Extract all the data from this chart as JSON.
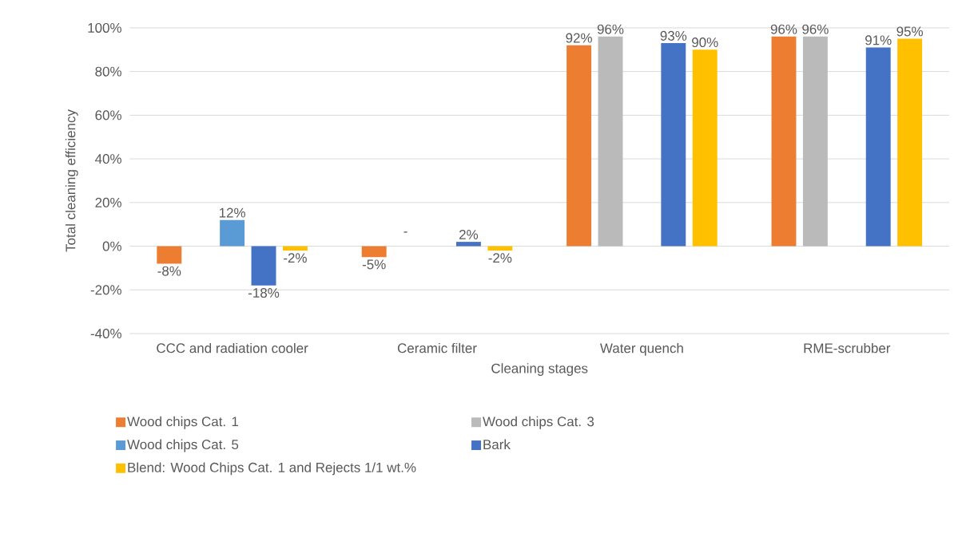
{
  "chart_data": {
    "type": "bar",
    "xlabel": "Cleaning stages",
    "ylabel": "Total cleaning efficiency",
    "categories": [
      "CCC and radiation cooler",
      "Ceramic filter",
      "Water quench",
      "RME-scrubber"
    ],
    "ylim": [
      -40,
      100
    ],
    "yticks": [
      {
        "value": -40,
        "label": "-40%"
      },
      {
        "value": -20,
        "label": "-20%"
      },
      {
        "value": 0,
        "label": "0%"
      },
      {
        "value": 20,
        "label": "20%"
      },
      {
        "value": 40,
        "label": "40%"
      },
      {
        "value": 60,
        "label": "60%"
      },
      {
        "value": 80,
        "label": "80%"
      },
      {
        "value": 100,
        "label": "100%"
      }
    ],
    "grid": "y",
    "legend": "bottom",
    "series": [
      {
        "name": "Wood chips Cat. 1",
        "color": "#ed7d31",
        "values": [
          -8,
          -5,
          92,
          96
        ],
        "value_labels": [
          "-8%",
          "-5%",
          "92%",
          "96%"
        ]
      },
      {
        "name": "Wood chips Cat. 3",
        "color": "#bababa",
        "values": [
          null,
          null,
          96,
          96
        ],
        "value_labels": [
          null,
          "-",
          "96%",
          "96%"
        ]
      },
      {
        "name": "Wood chips Cat. 5",
        "color": "#5b9bd5",
        "values": [
          12,
          null,
          null,
          null
        ],
        "value_labels": [
          "12%",
          null,
          null,
          null
        ]
      },
      {
        "name": "Bark",
        "color": "#4472c4",
        "values": [
          -18,
          2,
          93,
          91
        ],
        "value_labels": [
          "-18%",
          "2%",
          "93%",
          "91%"
        ]
      },
      {
        "name": "Blend: Wood Chips Cat. 1 and Rejects 1/1 wt.%",
        "color": "#ffc000",
        "values": [
          -2,
          -2,
          90,
          95
        ],
        "value_labels": [
          "-2%",
          "-2%",
          "90%",
          "95%"
        ]
      }
    ]
  }
}
